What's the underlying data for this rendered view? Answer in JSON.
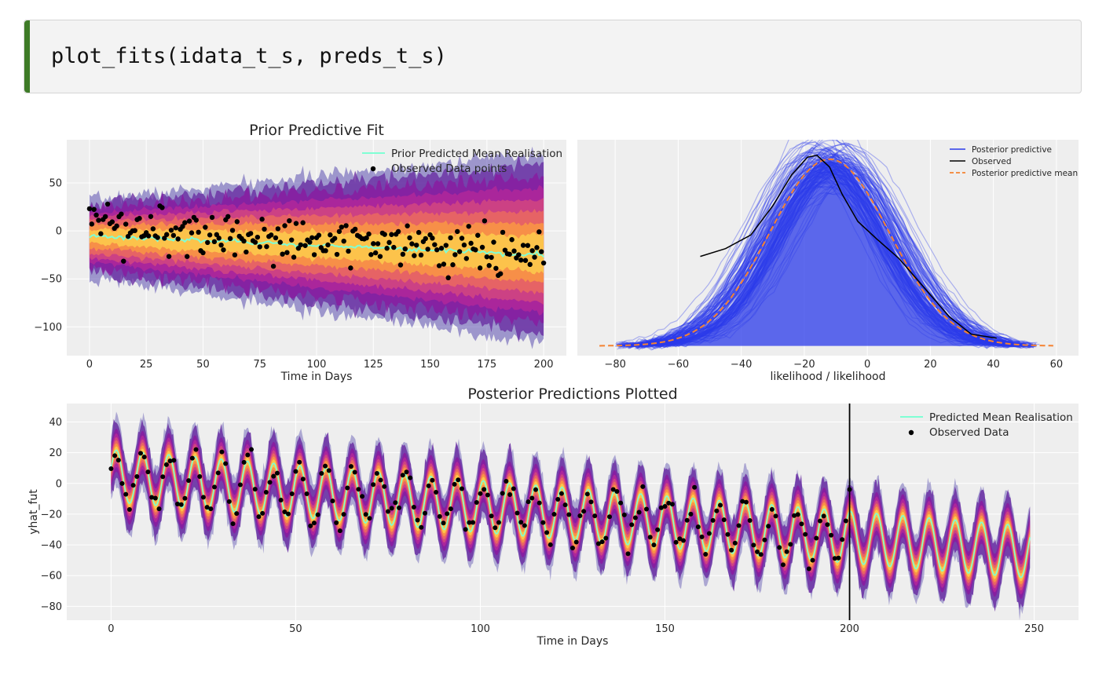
{
  "code_cell": {
    "code": "plot_fits(idata_t_s, preds_t_s)"
  },
  "chart_data": [
    {
      "type": "line",
      "title": "Prior Predictive Fit",
      "xlabel": "Time in Days",
      "ylabel": "",
      "xlim": [
        -10,
        210
      ],
      "ylim": [
        -130,
        95
      ],
      "xticks": [
        0,
        25,
        50,
        75,
        100,
        125,
        150,
        175,
        200
      ],
      "yticks": [
        -100,
        -50,
        0,
        50
      ],
      "grid": true,
      "legend_position": "top-right",
      "legend": [
        "Prior Predicted Mean Realisation",
        "Observed Data points"
      ],
      "mean_line": {
        "x": [
          0,
          200
        ],
        "y": [
          -5,
          -25
        ],
        "color": "#7fffd4"
      },
      "prior_band": {
        "x": [
          0,
          200
        ],
        "lower_start": -48,
        "lower_end": -118,
        "upper_start": 32,
        "upper_end": 82
      },
      "observed": {
        "n": 201,
        "x_range": [
          0,
          200
        ],
        "trend": [
          5,
          -25
        ],
        "noise_sd": 16,
        "color": "#000000"
      }
    },
    {
      "type": "line",
      "title": "",
      "xlabel": "likelihood / likelihood",
      "ylabel": "",
      "xlim": [
        -92,
        67
      ],
      "ylim": [
        -0.05,
        1.06
      ],
      "xticks": [
        -80,
        -60,
        -40,
        -20,
        0,
        20,
        40,
        60
      ],
      "yticks": [],
      "grid": true,
      "legend_position": "top-right",
      "legend": [
        "Posterior predictive",
        "Observed",
        "Posterior predictive mean"
      ],
      "colors": {
        "posterior": "#2a3aea",
        "observed": "#000000",
        "mean": "#f58231"
      },
      "posterior_predictive_mean": {
        "center": -12,
        "sd": 19,
        "x_range": [
          -85,
          59
        ]
      },
      "observed_density": {
        "x": [
          -53,
          -45,
          -37,
          -30,
          -24,
          -19,
          -16,
          -12,
          -8,
          -3,
          3,
          10,
          18,
          26,
          33,
          41
        ],
        "y": [
          0.46,
          0.5,
          0.57,
          0.72,
          0.88,
          0.97,
          0.98,
          0.92,
          0.78,
          0.64,
          0.55,
          0.45,
          0.3,
          0.15,
          0.06,
          0.04
        ]
      }
    },
    {
      "type": "line",
      "title": "Posterior Predictions Plotted",
      "xlabel": "Time in Days",
      "ylabel": "yhat_fut",
      "xlim": [
        -12,
        262
      ],
      "ylim": [
        -89,
        52
      ],
      "xticks": [
        0,
        50,
        100,
        150,
        200,
        250
      ],
      "yticks": [
        -80,
        -60,
        -40,
        -20,
        0,
        20,
        40
      ],
      "grid": true,
      "legend_position": "top-right",
      "legend": [
        "Predicted Mean Realisation",
        "Observed Data"
      ],
      "vline_x": 200,
      "mean_line": {
        "x_range": [
          0,
          249
        ],
        "start": 5,
        "slope": -0.2,
        "amplitude": 17,
        "period": 7.1,
        "color": "#7fffd4"
      },
      "observed": {
        "n": 201,
        "x_range": [
          0,
          200
        ],
        "noise_sd": 5,
        "color": "#000000"
      }
    }
  ]
}
